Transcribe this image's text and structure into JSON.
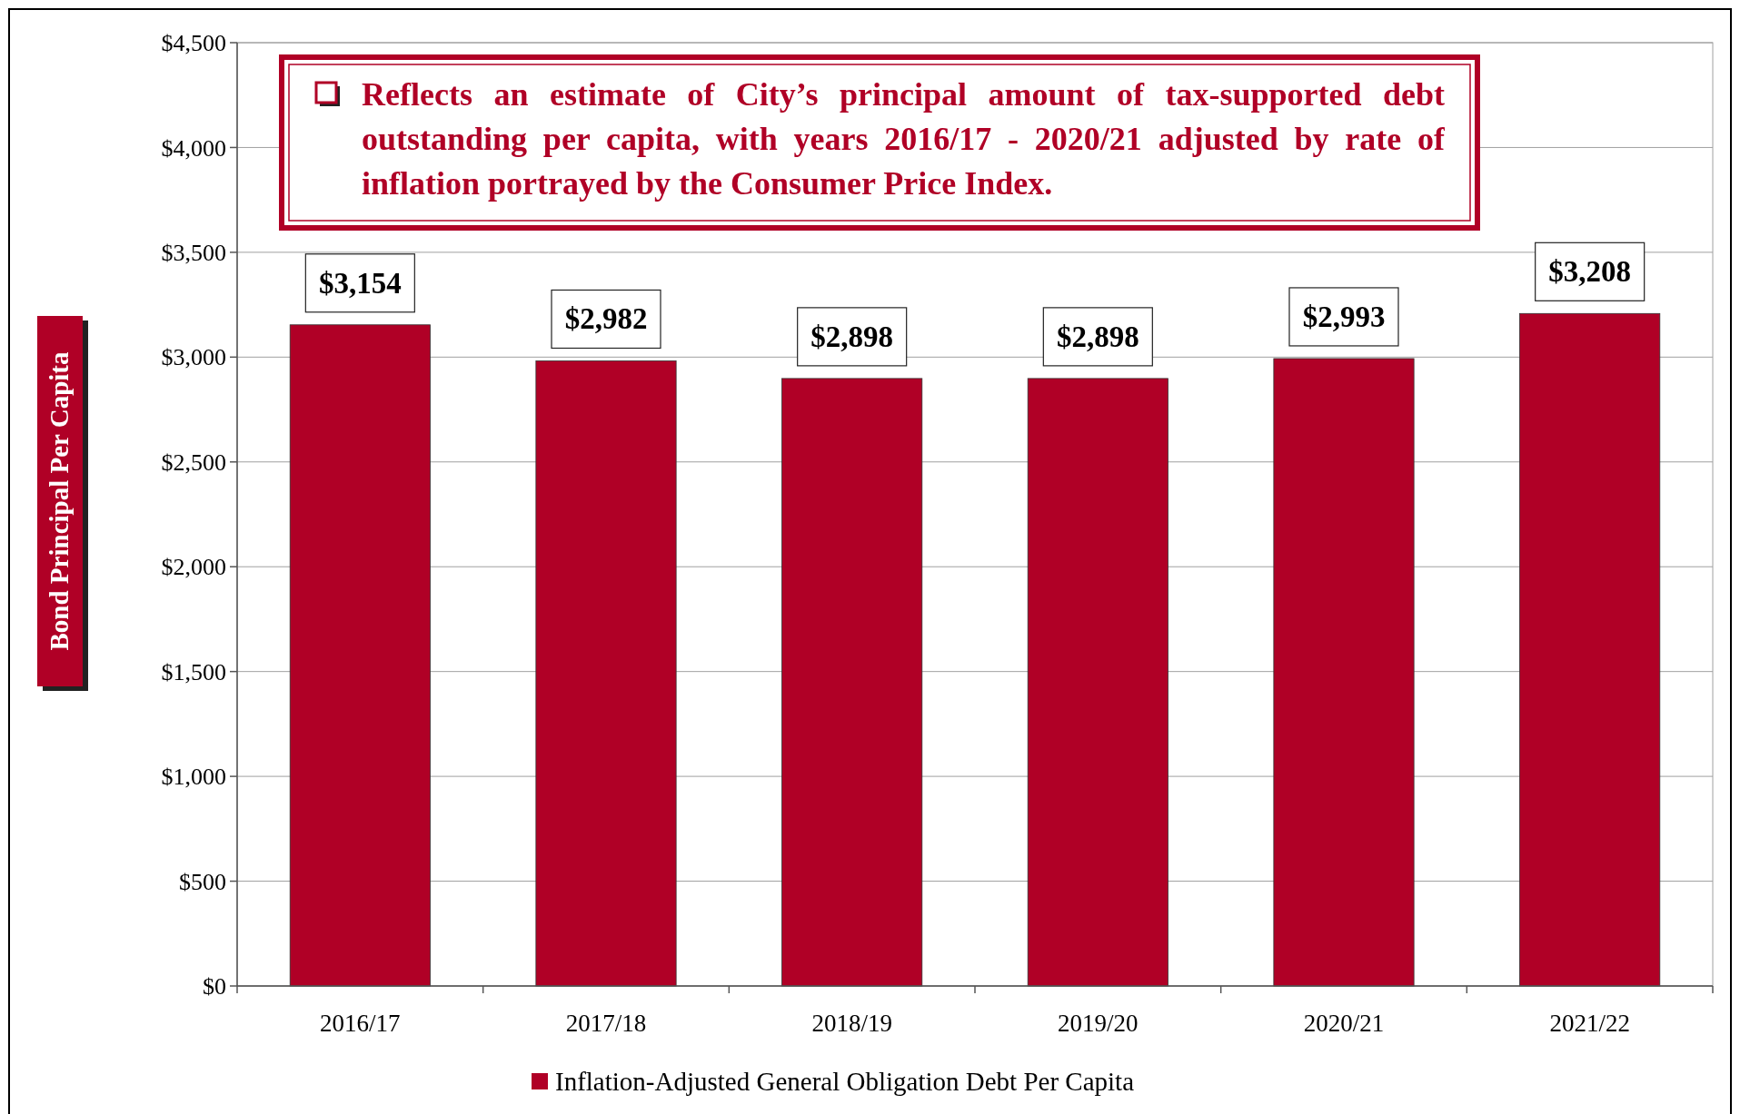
{
  "chart_data": {
    "type": "bar",
    "ylabel": "Bond Principal Per Capita",
    "annotations": [
      "Reflects an estimate of City’s principal amount of tax-supported debt outstanding per capita, with years 2016/17 - 2020/21 adjusted by rate of inflation portrayed by the Consumer Price Index."
    ],
    "categories": [
      "2016/17",
      "2017/18",
      "2018/19",
      "2019/20",
      "2020/21",
      "2021/22"
    ],
    "series": [
      {
        "name": "Inflation-Adjusted General Obligation Debt Per Capita",
        "color": "#b00026",
        "values": [
          3154,
          2982,
          2898,
          2898,
          2993,
          3208
        ]
      }
    ],
    "ylim": [
      0,
      4500
    ],
    "yticks": [
      {
        "value": 0,
        "label": "$0"
      },
      {
        "value": 500,
        "label": "$500"
      },
      {
        "value": 1000,
        "label": "$1,000"
      },
      {
        "value": 1500,
        "label": "$1,500"
      },
      {
        "value": 2000,
        "label": "$2,000"
      },
      {
        "value": 2500,
        "label": "$2,500"
      },
      {
        "value": 3000,
        "label": "$3,000"
      },
      {
        "value": 3500,
        "label": "$3,500"
      },
      {
        "value": 4000,
        "label": "$4,000"
      },
      {
        "value": 4500,
        "label": "$4,500"
      }
    ],
    "value_labels": [
      [
        "$3,154",
        "$2,982",
        "$2,898",
        "$2,898",
        "$2,993",
        "$3,208"
      ]
    ],
    "grid": "y",
    "legend": "bottom"
  }
}
